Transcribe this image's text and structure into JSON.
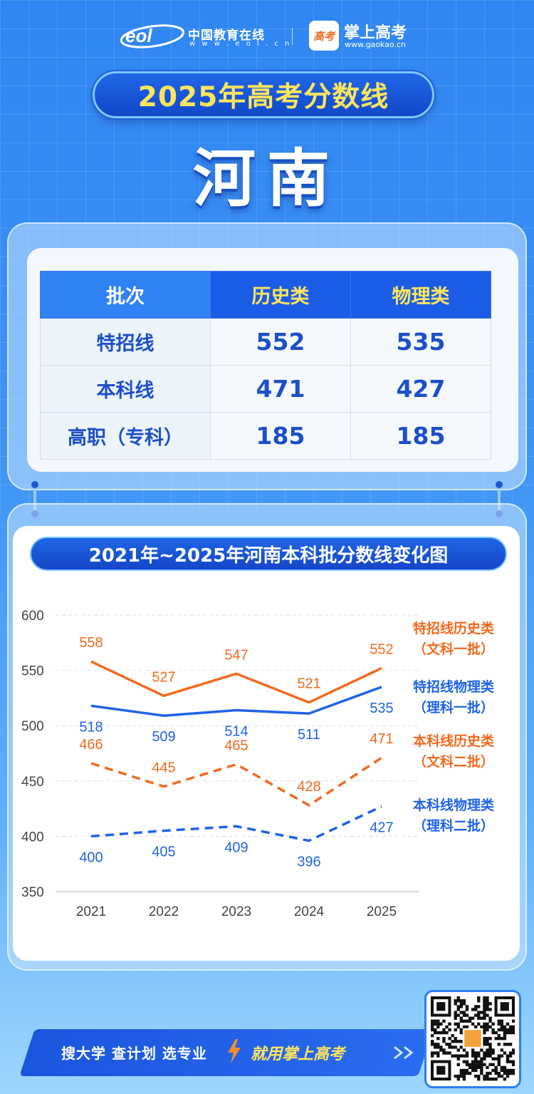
{
  "header": {
    "eol_cn": "中国教育在线",
    "eol_url": "w w w . e o l . c n",
    "gk_logo_text": "高考",
    "gk_name": "掌上高考",
    "gk_url": "www.gaokao.cn"
  },
  "title": "2025年高考分数线",
  "province": "河南",
  "score_table": {
    "headers": [
      "批次",
      "历史类",
      "物理类"
    ],
    "rows": [
      [
        "特招线",
        "552",
        "535"
      ],
      [
        "本科线",
        "471",
        "427"
      ],
      [
        "高职（专科）",
        "185",
        "185"
      ]
    ]
  },
  "chart_data": {
    "type": "line",
    "title": "2021年~2025年河南本科批分数线变化图",
    "categories": [
      "2021",
      "2022",
      "2023",
      "2024",
      "2025"
    ],
    "ylim": [
      350,
      600
    ],
    "yticks": [
      "350",
      "400",
      "450",
      "500",
      "550",
      "600"
    ],
    "grid": true,
    "series": [
      {
        "name": "特招线历史类（文科一批）",
        "name_line1": "特招线历史类",
        "name_line2": "（文科一批）",
        "values": [
          558,
          527,
          547,
          521,
          552
        ],
        "color": "#f26a1f",
        "dashed": false,
        "label_pos": "above"
      },
      {
        "name": "特招线物理类（理科一批）",
        "name_line1": "特招线物理类",
        "name_line2": "（理科一批）",
        "values": [
          518,
          509,
          514,
          511,
          535
        ],
        "color": "#1f63e8",
        "dashed": false,
        "label_pos": "below"
      },
      {
        "name": "本科线历史类（文科二批）",
        "name_line1": "本科线历史类",
        "name_line2": "（文科二批）",
        "values": [
          466,
          445,
          465,
          428,
          471
        ],
        "color": "#f26a1f",
        "dashed": true,
        "label_pos": "above"
      },
      {
        "name": "本科线物理类（理科二批）",
        "name_line1": "本科线物理类",
        "name_line2": "（理科二批）",
        "values": [
          400,
          405,
          409,
          396,
          427
        ],
        "color": "#1f63e8",
        "dashed": true,
        "label_pos": "below"
      }
    ]
  },
  "footer": {
    "slogan": "搜大学  查计划  选专业",
    "cta": "就用掌上高考"
  }
}
